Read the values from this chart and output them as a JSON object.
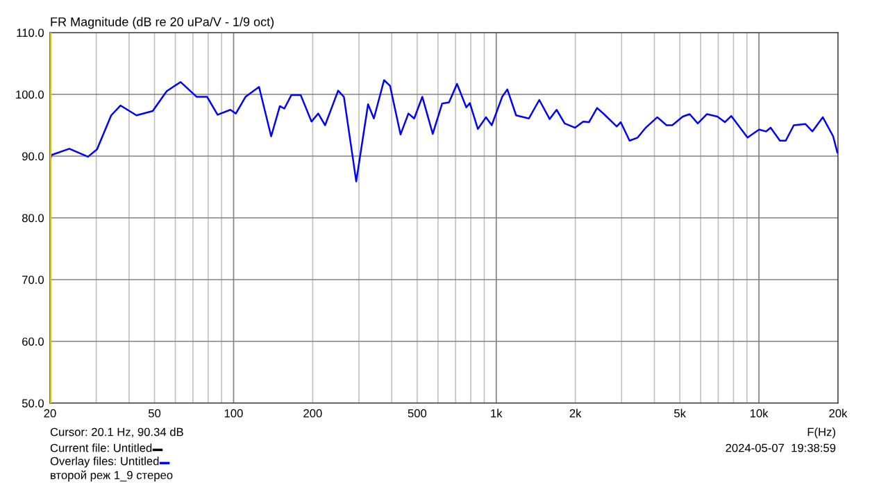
{
  "chart_data": {
    "type": "line",
    "title": "FR Magnitude (dB re 20 uPa/V - 1/9 oct)",
    "xlabel": "F(Hz)",
    "log": "x",
    "grid": true,
    "legend": false,
    "marker": "none",
    "line_style": "solid",
    "xlim": [
      20,
      20000
    ],
    "ylim": [
      50,
      110
    ],
    "xticks": [
      20,
      {
        "value": 30,
        "label": null
      },
      {
        "value": 40,
        "label": null
      },
      50,
      {
        "value": 60,
        "label": null
      },
      {
        "value": 70,
        "label": null
      },
      {
        "value": 80,
        "label": null
      },
      {
        "value": 90,
        "label": null
      },
      100,
      200,
      {
        "value": 300,
        "label": null
      },
      {
        "value": 400,
        "label": null
      },
      500,
      {
        "value": 600,
        "label": null
      },
      {
        "value": 700,
        "label": null
      },
      {
        "value": 800,
        "label": null
      },
      {
        "value": 900,
        "label": null
      },
      {
        "value": 1000,
        "label": "1k"
      },
      {
        "value": 2000,
        "label": "2k"
      },
      {
        "value": 3000,
        "label": null
      },
      {
        "value": 4000,
        "label": null
      },
      {
        "value": 5000,
        "label": "5k"
      },
      {
        "value": 6000,
        "label": null
      },
      {
        "value": 7000,
        "label": null
      },
      {
        "value": 8000,
        "label": null
      },
      {
        "value": 9000,
        "label": null
      },
      {
        "value": 10000,
        "label": "10k"
      },
      {
        "value": 20000,
        "label": "20k"
      }
    ],
    "yticks": [
      {
        "value": 50,
        "label": "50.0"
      },
      {
        "value": 60,
        "label": "60.0"
      },
      {
        "value": 70,
        "label": "70.0"
      },
      {
        "value": 80,
        "label": "80.0"
      },
      {
        "value": 90,
        "label": "90.0"
      },
      {
        "value": 100,
        "label": "100.0"
      },
      {
        "value": 110,
        "label": "110.0"
      }
    ],
    "ref_lines": [
      {
        "axis": "x",
        "value": 20.1,
        "color": "#d8c800"
      }
    ],
    "series": [
      {
        "color": "#0000ff",
        "x": [
          20,
          20.3,
          23.7,
          27.9,
          30.2,
          34.2,
          37.1,
          42.7,
          49.2,
          55.6,
          62.8,
          72.4,
          79.3,
          86.9,
          97.2,
          102,
          111,
          125,
          139,
          150,
          156,
          166,
          180,
          198,
          210,
          223,
          250,
          263,
          293,
          325,
          342,
          374,
          394,
          432,
          463,
          487,
          523,
          573,
          622,
          661,
          709,
          769,
          793,
          851,
          914,
          961,
          1053,
          1102,
          1190,
          1331,
          1458,
          1597,
          1697,
          1821,
          1996,
          2143,
          2254,
          2420,
          2572,
          2876,
          2977,
          3217,
          3452,
          3706,
          4102,
          4449,
          4678,
          5128,
          5449,
          5850,
          6342,
          6948,
          7418,
          7850,
          9048,
          10012,
          10638,
          11080,
          12018,
          12648,
          13572,
          15024,
          15972,
          17498,
          19166,
          19880
        ],
        "values": [
          89.4,
          90.2,
          91.2,
          89.9,
          91.1,
          96.6,
          98.2,
          96.6,
          97.3,
          100.5,
          102.0,
          99.6,
          99.6,
          96.7,
          97.5,
          96.9,
          99.6,
          101.2,
          93.2,
          98.1,
          97.7,
          99.9,
          99.9,
          95.6,
          96.9,
          95.0,
          100.6,
          99.6,
          85.9,
          98.4,
          96.1,
          102.3,
          101.4,
          93.5,
          96.9,
          96.1,
          99.6,
          93.6,
          98.5,
          98.7,
          101.7,
          97.9,
          98.6,
          94.4,
          96.3,
          95.0,
          99.6,
          100.8,
          96.6,
          96.1,
          99.1,
          96.0,
          97.5,
          95.3,
          94.6,
          95.6,
          95.5,
          97.8,
          96.8,
          94.8,
          95.5,
          92.5,
          93.0,
          94.6,
          96.3,
          95.0,
          95.0,
          96.4,
          96.8,
          95.3,
          96.8,
          96.4,
          95.5,
          96.5,
          93.0,
          94.3,
          94.0,
          94.6,
          92.5,
          92.5,
          95.0,
          95.2,
          94.0,
          96.3,
          93.2,
          90.6
        ]
      }
    ],
    "annotations": [
      "Cursor: 20.1 Hz, 90.34 dB",
      "Current file: Untitled",
      "Overlay files: Untitled",
      "второй реж 1_9 стерео",
      "2024-05-07  19:38:59"
    ]
  }
}
